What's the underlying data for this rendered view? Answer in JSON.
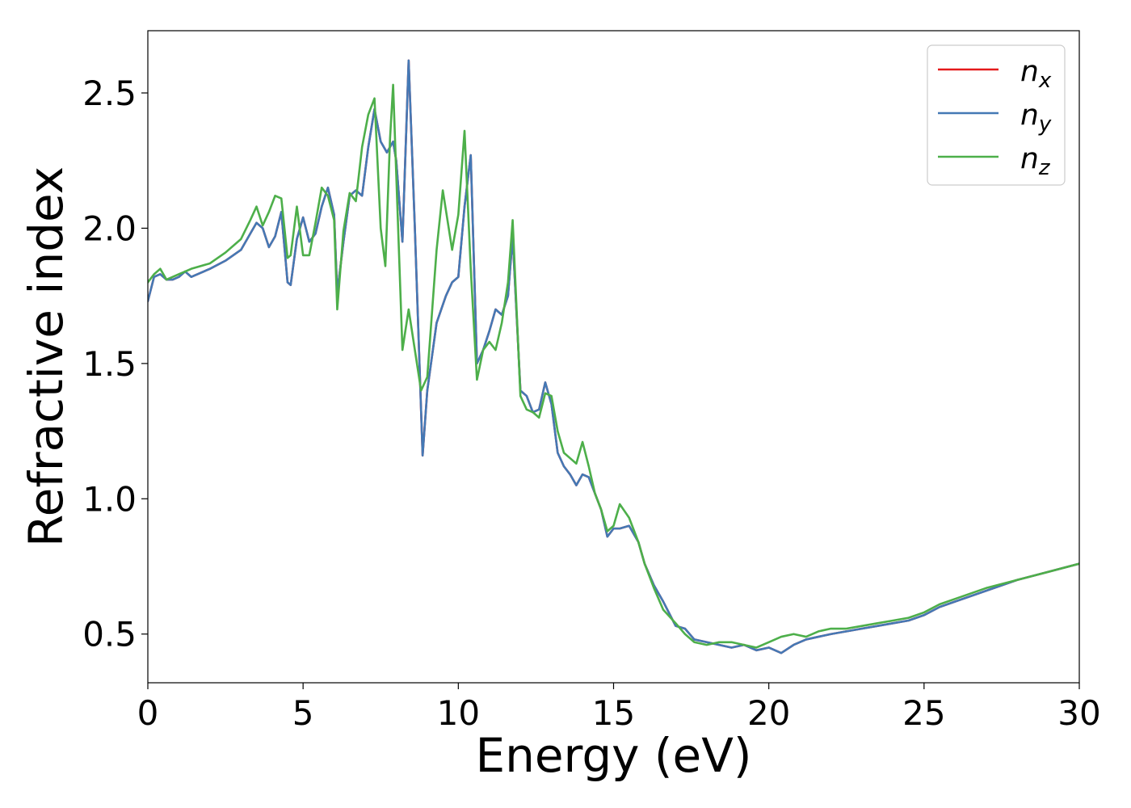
{
  "chart_data": {
    "type": "line",
    "title": "",
    "xlabel": "Energy (eV)",
    "ylabel": "Refractive index",
    "xlim": [
      0,
      30
    ],
    "ylim": [
      0.32,
      2.73
    ],
    "x_ticks": [
      0,
      5,
      10,
      15,
      20,
      25,
      30
    ],
    "x_tick_labels": [
      "0",
      "5",
      "10",
      "15",
      "20",
      "25",
      "30"
    ],
    "y_ticks": [
      0.5,
      1.0,
      1.5,
      2.0,
      2.5
    ],
    "y_tick_labels": [
      "0.5",
      "1.0",
      "1.5",
      "2.0",
      "2.5"
    ],
    "grid": false,
    "legend_position": "upper right",
    "series": [
      {
        "name": "x",
        "legend_base": "n",
        "legend_sub": "x",
        "color": "#e41a1c",
        "x": [
          0,
          0.2,
          0.4,
          0.6,
          0.8,
          1.0,
          1.2,
          1.4,
          2.0,
          2.5,
          3.0,
          3.3,
          3.5,
          3.7,
          3.9,
          4.1,
          4.3,
          4.5,
          4.6,
          4.8,
          5.0,
          5.2,
          5.4,
          5.6,
          5.8,
          6.0,
          6.1,
          6.3,
          6.5,
          6.7,
          6.9,
          7.1,
          7.3,
          7.5,
          7.7,
          7.9,
          8.0,
          8.2,
          8.4,
          8.6,
          8.85,
          9.0,
          9.3,
          9.6,
          9.8,
          10.0,
          10.2,
          10.4,
          10.6,
          10.8,
          11.0,
          11.2,
          11.4,
          11.6,
          11.75,
          12.0,
          12.2,
          12.4,
          12.6,
          12.8,
          13.0,
          13.2,
          13.4,
          13.6,
          13.8,
          14.0,
          14.2,
          14.4,
          14.6,
          14.8,
          15.0,
          15.2,
          15.5,
          15.8,
          16.0,
          16.3,
          16.6,
          17.0,
          17.3,
          17.6,
          18.0,
          18.4,
          18.8,
          19.2,
          19.6,
          20.0,
          20.4,
          20.8,
          21.2,
          21.6,
          22.0,
          22.5,
          23.0,
          23.5,
          24.0,
          24.5,
          25.0,
          25.5,
          26.0,
          27.0,
          28.0,
          29.0,
          30.0
        ],
        "y": [
          1.73,
          1.82,
          1.83,
          1.81,
          1.81,
          1.82,
          1.84,
          1.82,
          1.85,
          1.88,
          1.92,
          1.98,
          2.02,
          2.0,
          1.93,
          1.97,
          2.06,
          1.8,
          1.79,
          1.96,
          2.04,
          1.95,
          1.98,
          2.08,
          2.15,
          2.05,
          1.76,
          1.95,
          2.12,
          2.14,
          2.12,
          2.3,
          2.44,
          2.32,
          2.28,
          2.32,
          2.25,
          1.95,
          2.62,
          2.0,
          1.16,
          1.4,
          1.65,
          1.75,
          1.8,
          1.82,
          2.08,
          2.27,
          1.5,
          1.55,
          1.62,
          1.7,
          1.68,
          1.75,
          1.97,
          1.4,
          1.38,
          1.32,
          1.33,
          1.43,
          1.35,
          1.17,
          1.12,
          1.09,
          1.05,
          1.09,
          1.08,
          1.02,
          0.96,
          0.86,
          0.89,
          0.89,
          0.9,
          0.84,
          0.76,
          0.68,
          0.62,
          0.53,
          0.52,
          0.48,
          0.47,
          0.46,
          0.45,
          0.46,
          0.44,
          0.45,
          0.43,
          0.46,
          0.48,
          0.49,
          0.5,
          0.51,
          0.52,
          0.53,
          0.54,
          0.55,
          0.57,
          0.6,
          0.62,
          0.66,
          0.7,
          0.73,
          0.76
        ]
      },
      {
        "name": "y",
        "legend_base": "n",
        "legend_sub": "y",
        "color": "#4479b5",
        "x": [
          0,
          0.2,
          0.4,
          0.6,
          0.8,
          1.0,
          1.2,
          1.4,
          2.0,
          2.5,
          3.0,
          3.3,
          3.5,
          3.7,
          3.9,
          4.1,
          4.3,
          4.5,
          4.6,
          4.8,
          5.0,
          5.2,
          5.4,
          5.6,
          5.8,
          6.0,
          6.1,
          6.3,
          6.5,
          6.7,
          6.9,
          7.1,
          7.3,
          7.5,
          7.7,
          7.9,
          8.0,
          8.2,
          8.4,
          8.6,
          8.85,
          9.0,
          9.3,
          9.6,
          9.8,
          10.0,
          10.2,
          10.4,
          10.6,
          10.8,
          11.0,
          11.2,
          11.4,
          11.6,
          11.75,
          12.0,
          12.2,
          12.4,
          12.6,
          12.8,
          13.0,
          13.2,
          13.4,
          13.6,
          13.8,
          14.0,
          14.2,
          14.4,
          14.6,
          14.8,
          15.0,
          15.2,
          15.5,
          15.8,
          16.0,
          16.3,
          16.6,
          17.0,
          17.3,
          17.6,
          18.0,
          18.4,
          18.8,
          19.2,
          19.6,
          20.0,
          20.4,
          20.8,
          21.2,
          21.6,
          22.0,
          22.5,
          23.0,
          23.5,
          24.0,
          24.5,
          25.0,
          25.5,
          26.0,
          27.0,
          28.0,
          29.0,
          30.0
        ],
        "y": [
          1.73,
          1.82,
          1.83,
          1.81,
          1.81,
          1.82,
          1.84,
          1.82,
          1.85,
          1.88,
          1.92,
          1.98,
          2.02,
          2.0,
          1.93,
          1.97,
          2.06,
          1.8,
          1.79,
          1.96,
          2.04,
          1.95,
          1.98,
          2.08,
          2.15,
          2.05,
          1.76,
          1.95,
          2.12,
          2.14,
          2.12,
          2.3,
          2.44,
          2.32,
          2.28,
          2.32,
          2.25,
          1.95,
          2.62,
          2.0,
          1.16,
          1.4,
          1.65,
          1.75,
          1.8,
          1.82,
          2.08,
          2.27,
          1.5,
          1.55,
          1.62,
          1.7,
          1.68,
          1.75,
          1.97,
          1.4,
          1.38,
          1.32,
          1.33,
          1.43,
          1.35,
          1.17,
          1.12,
          1.09,
          1.05,
          1.09,
          1.08,
          1.02,
          0.96,
          0.86,
          0.89,
          0.89,
          0.9,
          0.84,
          0.76,
          0.68,
          0.62,
          0.53,
          0.52,
          0.48,
          0.47,
          0.46,
          0.45,
          0.46,
          0.44,
          0.45,
          0.43,
          0.46,
          0.48,
          0.49,
          0.5,
          0.51,
          0.52,
          0.53,
          0.54,
          0.55,
          0.57,
          0.6,
          0.62,
          0.66,
          0.7,
          0.73,
          0.76
        ]
      },
      {
        "name": "z",
        "legend_base": "n",
        "legend_sub": "z",
        "color": "#4daf4a",
        "x": [
          0,
          0.2,
          0.4,
          0.6,
          0.8,
          1.0,
          1.2,
          1.4,
          2.0,
          2.5,
          3.0,
          3.3,
          3.5,
          3.7,
          3.9,
          4.1,
          4.3,
          4.5,
          4.6,
          4.8,
          5.0,
          5.2,
          5.4,
          5.6,
          5.8,
          6.0,
          6.1,
          6.3,
          6.5,
          6.7,
          6.9,
          7.1,
          7.3,
          7.5,
          7.65,
          7.8,
          7.9,
          8.0,
          8.2,
          8.4,
          8.6,
          8.8,
          9.0,
          9.3,
          9.5,
          9.8,
          10.0,
          10.2,
          10.4,
          10.6,
          10.8,
          11.0,
          11.2,
          11.4,
          11.6,
          11.75,
          12.0,
          12.2,
          12.4,
          12.6,
          12.8,
          13.0,
          13.2,
          13.4,
          13.6,
          13.8,
          14.0,
          14.2,
          14.4,
          14.6,
          14.8,
          15.0,
          15.2,
          15.5,
          15.8,
          16.0,
          16.3,
          16.6,
          17.0,
          17.3,
          17.6,
          18.0,
          18.4,
          18.8,
          19.2,
          19.6,
          20.0,
          20.4,
          20.8,
          21.2,
          21.6,
          22.0,
          22.5,
          23.0,
          23.5,
          24.0,
          24.5,
          25.0,
          25.5,
          26.0,
          27.0,
          28.0,
          29.0,
          30.0
        ],
        "y": [
          1.8,
          1.83,
          1.85,
          1.81,
          1.82,
          1.83,
          1.84,
          1.85,
          1.87,
          1.91,
          1.96,
          2.03,
          2.08,
          2.01,
          2.06,
          2.12,
          2.11,
          1.89,
          1.9,
          2.08,
          1.9,
          1.9,
          2.02,
          2.15,
          2.12,
          2.03,
          1.7,
          1.99,
          2.13,
          2.1,
          2.3,
          2.42,
          2.48,
          2.0,
          1.86,
          2.33,
          2.53,
          2.2,
          1.55,
          1.7,
          1.55,
          1.4,
          1.45,
          1.92,
          2.14,
          1.92,
          2.05,
          2.36,
          1.85,
          1.44,
          1.55,
          1.58,
          1.55,
          1.65,
          1.8,
          2.03,
          1.38,
          1.33,
          1.32,
          1.3,
          1.39,
          1.38,
          1.25,
          1.17,
          1.15,
          1.13,
          1.21,
          1.12,
          1.02,
          0.96,
          0.88,
          0.9,
          0.98,
          0.93,
          0.84,
          0.76,
          0.67,
          0.59,
          0.54,
          0.5,
          0.47,
          0.46,
          0.47,
          0.47,
          0.46,
          0.45,
          0.47,
          0.49,
          0.5,
          0.49,
          0.51,
          0.52,
          0.52,
          0.53,
          0.54,
          0.55,
          0.56,
          0.58,
          0.61,
          0.63,
          0.67,
          0.7,
          0.73,
          0.76
        ]
      }
    ]
  }
}
